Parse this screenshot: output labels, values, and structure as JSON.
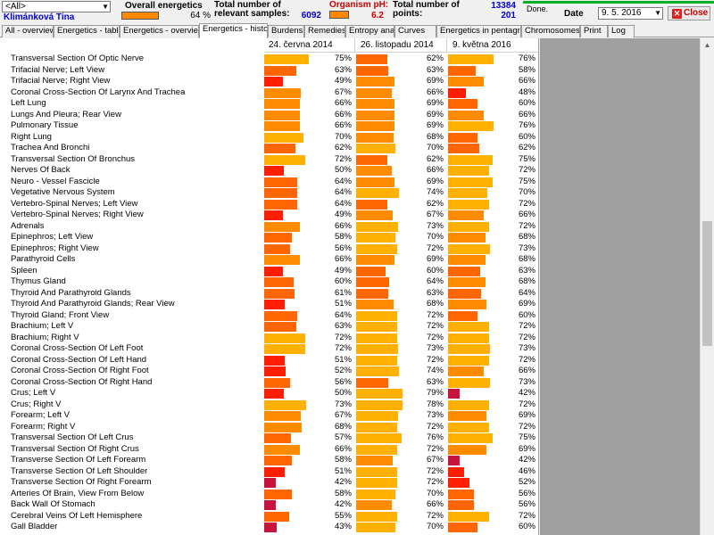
{
  "header": {
    "person_select_value": "<All>",
    "patient_name": "Klimánková Tina",
    "energetics_label": "Overall energetics",
    "energetics_pct": "64 %",
    "samples_label": "Total number of relevant samples:",
    "samples_value": "6092",
    "ph_label": "Organism pH:",
    "ph_value": "6.2",
    "points_label": "Total number of points:",
    "count1": "13384",
    "count2": "201",
    "status": "Done.",
    "progress": 1.0,
    "date_label": "Date",
    "date_value": "9. 5. 2016",
    "close_label": "Close"
  },
  "tabs": [
    {
      "label": "All - overview",
      "active": false
    },
    {
      "label": "Energetics - table",
      "active": false
    },
    {
      "label": "Energetics - overview",
      "active": false
    },
    {
      "label": "Energetics - history",
      "active": true
    },
    {
      "label": "Burdens",
      "active": false
    },
    {
      "label": "Remedies",
      "active": false
    },
    {
      "label": "Entropy analysis",
      "active": false
    },
    {
      "label": "Curves",
      "active": false
    },
    {
      "label": "Energetics in pentagram",
      "active": false
    },
    {
      "label": "Chromosomes",
      "active": false
    },
    {
      "label": "Print",
      "active": false
    },
    {
      "label": "Log",
      "active": false
    }
  ],
  "columns": [
    "24. června 2014",
    "26. listopadu 2014",
    "9. května 2016"
  ],
  "colors": {
    "red": "#ff1f00",
    "orange_red": "#ff6600",
    "orange": "#ff8c00",
    "amber": "#ffb000",
    "crimson": "#c8143c"
  },
  "rows": [
    {
      "name": "Transversal Section Of Optic Nerve",
      "values": [
        "75%",
        "62%",
        "76%"
      ],
      "colors": [
        "amber",
        "orange_red",
        "amber"
      ]
    },
    {
      "name": "Trifacial Nerve; Left View",
      "values": [
        "63%",
        "63%",
        "58%"
      ],
      "colors": [
        "orange_red",
        "orange_red",
        "orange_red"
      ]
    },
    {
      "name": "Trifacial Nerve; Right View",
      "values": [
        "49%",
        "69%",
        "66%"
      ],
      "colors": [
        "red",
        "orange",
        "orange"
      ]
    },
    {
      "name": "Coronal Cross-Section Of Larynx And Trachea",
      "values": [
        "67%",
        "66%",
        "48%"
      ],
      "colors": [
        "orange",
        "orange",
        "red"
      ]
    },
    {
      "name": "Left Lung",
      "values": [
        "66%",
        "69%",
        "60%"
      ],
      "colors": [
        "orange",
        "orange",
        "orange_red"
      ]
    },
    {
      "name": "Lungs And Pleura; Rear View",
      "values": [
        "66%",
        "69%",
        "66%"
      ],
      "colors": [
        "orange",
        "orange",
        "orange"
      ]
    },
    {
      "name": "Pulmonary Tissue",
      "values": [
        "66%",
        "69%",
        "76%"
      ],
      "colors": [
        "orange",
        "orange",
        "amber"
      ]
    },
    {
      "name": "Right Lung",
      "values": [
        "70%",
        "68%",
        "60%"
      ],
      "colors": [
        "amber",
        "orange",
        "orange_red"
      ]
    },
    {
      "name": "Trachea And Bronchi",
      "values": [
        "62%",
        "70%",
        "62%"
      ],
      "colors": [
        "orange_red",
        "amber",
        "orange_red"
      ]
    },
    {
      "name": "Transversal Section Of Bronchus",
      "values": [
        "72%",
        "62%",
        "75%"
      ],
      "colors": [
        "amber",
        "orange_red",
        "amber"
      ]
    },
    {
      "name": "Nerves Of Back",
      "values": [
        "50%",
        "66%",
        "72%"
      ],
      "colors": [
        "red",
        "orange",
        "amber"
      ]
    },
    {
      "name": "Neuro - Vessel Fascicle",
      "values": [
        "64%",
        "69%",
        "75%"
      ],
      "colors": [
        "orange_red",
        "orange",
        "amber"
      ]
    },
    {
      "name": "Vegetative Nervous System",
      "values": [
        "64%",
        "74%",
        "70%"
      ],
      "colors": [
        "orange_red",
        "amber",
        "amber"
      ]
    },
    {
      "name": "Vertebro-Spinal Nerves; Left View",
      "values": [
        "64%",
        "62%",
        "72%"
      ],
      "colors": [
        "orange_red",
        "orange_red",
        "amber"
      ]
    },
    {
      "name": "Vertebro-Spinal Nerves; Right View",
      "values": [
        "49%",
        "67%",
        "66%"
      ],
      "colors": [
        "red",
        "orange",
        "orange"
      ]
    },
    {
      "name": "Adrenals",
      "values": [
        "66%",
        "73%",
        "72%"
      ],
      "colors": [
        "orange",
        "amber",
        "amber"
      ]
    },
    {
      "name": "Epinephros; Left View",
      "values": [
        "58%",
        "70%",
        "68%"
      ],
      "colors": [
        "orange_red",
        "amber",
        "orange"
      ]
    },
    {
      "name": "Epinephros; Right View",
      "values": [
        "56%",
        "72%",
        "73%"
      ],
      "colors": [
        "orange_red",
        "amber",
        "amber"
      ]
    },
    {
      "name": "Parathyroid Cells",
      "values": [
        "66%",
        "69%",
        "68%"
      ],
      "colors": [
        "orange",
        "orange",
        "orange"
      ]
    },
    {
      "name": "Spleen",
      "values": [
        "49%",
        "60%",
        "63%"
      ],
      "colors": [
        "red",
        "orange_red",
        "orange_red"
      ]
    },
    {
      "name": "Thymus Gland",
      "values": [
        "60%",
        "64%",
        "68%"
      ],
      "colors": [
        "orange_red",
        "orange_red",
        "orange"
      ]
    },
    {
      "name": "Thyroid And Parathyroid Glands",
      "values": [
        "61%",
        "63%",
        "64%"
      ],
      "colors": [
        "orange_red",
        "orange_red",
        "orange_red"
      ]
    },
    {
      "name": "Thyroid And Parathyroid Glands; Rear View",
      "values": [
        "51%",
        "68%",
        "69%"
      ],
      "colors": [
        "red",
        "orange",
        "orange"
      ]
    },
    {
      "name": "Thyroid Gland; Front View",
      "values": [
        "64%",
        "72%",
        "60%"
      ],
      "colors": [
        "orange_red",
        "amber",
        "orange_red"
      ]
    },
    {
      "name": "Brachium; Left V",
      "values": [
        "63%",
        "72%",
        "72%"
      ],
      "colors": [
        "orange_red",
        "amber",
        "amber"
      ]
    },
    {
      "name": "Brachium; Right V",
      "values": [
        "72%",
        "72%",
        "72%"
      ],
      "colors": [
        "amber",
        "amber",
        "amber"
      ]
    },
    {
      "name": "Coronal Cross-Section Of Left Foot",
      "values": [
        "72%",
        "73%",
        "73%"
      ],
      "colors": [
        "amber",
        "amber",
        "amber"
      ]
    },
    {
      "name": "Coronal Cross-Section Of Left Hand",
      "values": [
        "51%",
        "72%",
        "72%"
      ],
      "colors": [
        "red",
        "amber",
        "amber"
      ]
    },
    {
      "name": "Coronal Cross-Section Of Right Foot",
      "values": [
        "52%",
        "74%",
        "66%"
      ],
      "colors": [
        "red",
        "amber",
        "orange"
      ]
    },
    {
      "name": "Coronal Cross-Section Of Right Hand",
      "values": [
        "56%",
        "63%",
        "73%"
      ],
      "colors": [
        "orange_red",
        "orange_red",
        "amber"
      ]
    },
    {
      "name": "Crus; Left V",
      "values": [
        "50%",
        "79%",
        "42%"
      ],
      "colors": [
        "red",
        "amber",
        "crimson"
      ]
    },
    {
      "name": "Crus; Right V",
      "values": [
        "73%",
        "78%",
        "72%"
      ],
      "colors": [
        "amber",
        "amber",
        "amber"
      ]
    },
    {
      "name": "Forearm; Left V",
      "values": [
        "67%",
        "73%",
        "69%"
      ],
      "colors": [
        "orange",
        "amber",
        "orange"
      ]
    },
    {
      "name": "Forearm; Right V",
      "values": [
        "68%",
        "72%",
        "72%"
      ],
      "colors": [
        "orange",
        "amber",
        "amber"
      ]
    },
    {
      "name": "Transversal Section Of Left Crus",
      "values": [
        "57%",
        "76%",
        "75%"
      ],
      "colors": [
        "orange_red",
        "amber",
        "amber"
      ]
    },
    {
      "name": "Transversal Section Of Right Crus",
      "values": [
        "66%",
        "72%",
        "69%"
      ],
      "colors": [
        "orange",
        "amber",
        "orange"
      ]
    },
    {
      "name": "Transverse Section Of Left Forearm",
      "values": [
        "58%",
        "67%",
        "42%"
      ],
      "colors": [
        "orange_red",
        "orange",
        "crimson"
      ]
    },
    {
      "name": "Transverse Section Of Left Shoulder",
      "values": [
        "51%",
        "72%",
        "46%"
      ],
      "colors": [
        "red",
        "amber",
        "red"
      ]
    },
    {
      "name": "Transverse Section Of Right Forearm",
      "values": [
        "42%",
        "72%",
        "52%"
      ],
      "colors": [
        "crimson",
        "amber",
        "red"
      ]
    },
    {
      "name": "Arteries Of Brain, View From Below",
      "values": [
        "58%",
        "70%",
        "56%"
      ],
      "colors": [
        "orange_red",
        "amber",
        "orange_red"
      ]
    },
    {
      "name": "Back Wall Of Stomach",
      "values": [
        "42%",
        "66%",
        "56%"
      ],
      "colors": [
        "crimson",
        "orange",
        "orange_red"
      ]
    },
    {
      "name": "Cerebral Veins Of Left Hemisphere",
      "values": [
        "55%",
        "72%",
        "72%"
      ],
      "colors": [
        "orange_red",
        "amber",
        "amber"
      ]
    },
    {
      "name": "Gall Bladder",
      "values": [
        "43%",
        "70%",
        "60%"
      ],
      "colors": [
        "crimson",
        "amber",
        "orange_red"
      ]
    }
  ]
}
